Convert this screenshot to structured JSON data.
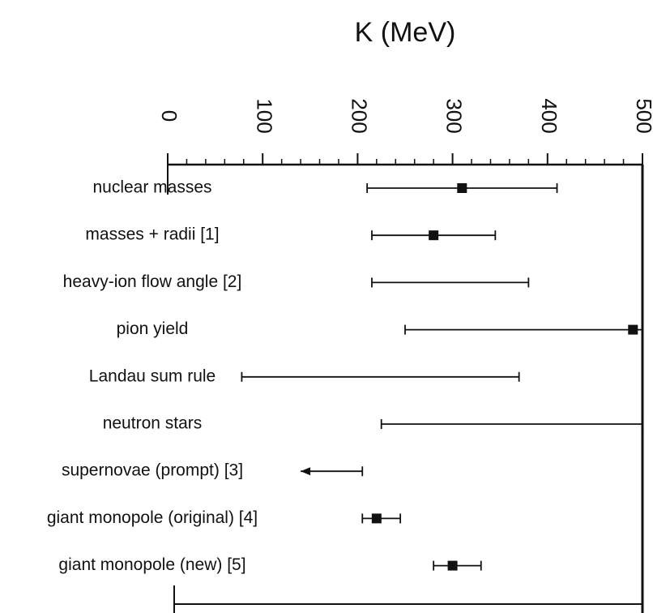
{
  "chart_data": {
    "type": "range",
    "xlabel": "K  (MeV)",
    "categories": [
      "nuclear masses",
      "masses + radii [1]",
      "heavy-ion flow angle [2]",
      "pion yield",
      "Landau sum rule",
      "neutron stars",
      "supernovae (prompt) [3]",
      "giant monopole (original) [4]",
      "giant monopole (new) [5]"
    ],
    "values": [
      310,
      280,
      null,
      490,
      null,
      null,
      null,
      220,
      300
    ],
    "low": [
      210,
      215,
      215,
      250,
      78,
      225,
      140,
      205,
      280
    ],
    "high": [
      410,
      345,
      380,
      500,
      370,
      500,
      205,
      245,
      330
    ],
    "arrows": [
      null,
      null,
      null,
      null,
      null,
      null,
      "left",
      null,
      null
    ],
    "color": "#111111",
    "xlim": [
      0,
      500
    ],
    "xticks": [
      0,
      100,
      200,
      300,
      400,
      500
    ],
    "xminorticks": [
      20,
      40,
      60,
      80,
      120,
      140,
      160,
      180,
      220,
      240,
      260,
      280,
      320,
      340,
      360,
      380,
      420,
      440,
      460,
      480
    ]
  }
}
